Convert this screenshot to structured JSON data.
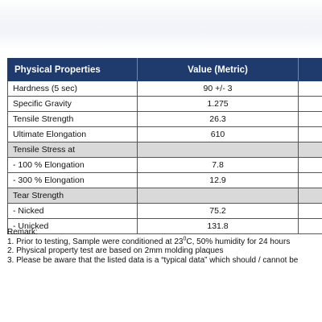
{
  "table": {
    "headers": [
      "Physical Properties",
      "Value (Metric)",
      ""
    ],
    "rows": [
      {
        "property": "Hardness (5 sec)",
        "value": "90 +/- 3",
        "section": false
      },
      {
        "property": "Specific Gravity",
        "value": "1.275",
        "section": false
      },
      {
        "property": "Tensile Strength",
        "value": "26.3",
        "section": false
      },
      {
        "property": "Ultimate Elongation",
        "value": "610",
        "section": false
      },
      {
        "property": "Tensile Stress at",
        "value": "",
        "section": true
      },
      {
        "property": "- 100 % Elongation",
        "value": "7.8",
        "section": false
      },
      {
        "property": "- 300 % Elongation",
        "value": "12.9",
        "section": false
      },
      {
        "property": "Tear Strength",
        "value": "",
        "section": true
      },
      {
        "property": "- Nicked",
        "value": "75.2",
        "section": false
      },
      {
        "property": "- Unicked",
        "value": "131.8",
        "section": false
      }
    ]
  },
  "remarks": {
    "title": "Remark:",
    "note1_before": "1. Prior to testing, Sample were conditioned at 23",
    "note1_sup": "0",
    "note1_after": "C, 50% humidity for 24 hours",
    "note2": "2. Physical property test are based on 2mm molding plaques",
    "note3": "3. Please be aware that the listed data is a “typical data” which should / cannot be"
  }
}
